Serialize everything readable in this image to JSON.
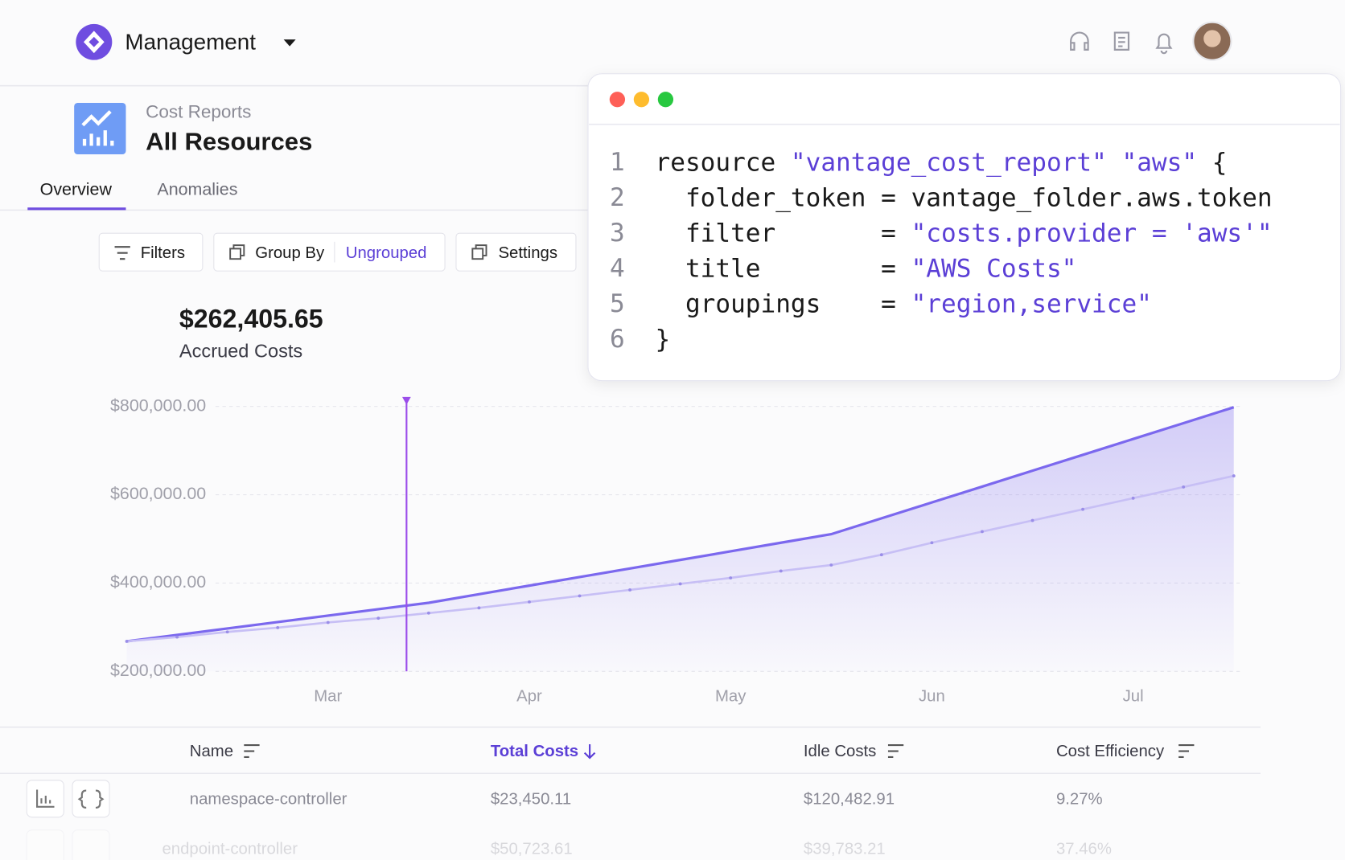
{
  "header": {
    "title": "Management"
  },
  "report": {
    "breadcrumb": "Cost Reports",
    "title": "All Resources"
  },
  "tabs": [
    "Overview",
    "Anomalies"
  ],
  "toolbar": {
    "filters": "Filters",
    "group_by": "Group By",
    "group_value": "Ungrouped",
    "settings": "Settings"
  },
  "summary": {
    "value": "$262,405.65",
    "label": "Accrued Costs"
  },
  "code": {
    "line_numbers": [
      1,
      2,
      3,
      4,
      5,
      6
    ],
    "lines": [
      [
        {
          "text": "resource ",
          "color": "#1a1a1a"
        },
        {
          "text": "\"vantage_cost_report\" \"aws\"",
          "color": "#5b3fd6"
        },
        {
          "text": " {",
          "color": "#1a1a1a"
        }
      ],
      [
        {
          "text": "  folder_token = vantage_folder.aws.token",
          "color": "#1a1a1a"
        }
      ],
      [
        {
          "text": "  filter       = ",
          "color": "#1a1a1a"
        },
        {
          "text": "\"costs.provider = 'aws'\"",
          "color": "#5b3fd6"
        }
      ],
      [
        {
          "text": "  title        = ",
          "color": "#1a1a1a"
        },
        {
          "text": "\"AWS Costs\"",
          "color": "#5b3fd6"
        }
      ],
      [
        {
          "text": "  groupings    = ",
          "color": "#1a1a1a"
        },
        {
          "text": "\"region,service\"",
          "color": "#5b3fd6"
        }
      ],
      [
        {
          "text": "}",
          "color": "#1a1a1a"
        }
      ]
    ]
  },
  "chart_data": {
    "type": "line",
    "x": [
      2.0,
      2.25,
      2.5,
      2.75,
      3.0,
      3.25,
      3.5,
      3.75,
      4.0,
      4.25,
      4.5,
      4.75,
      5.0,
      5.25,
      5.5,
      5.75,
      6.0,
      6.25,
      6.5,
      6.75,
      7.0,
      7.25,
      7.5
    ],
    "series": [
      {
        "color": "#7b68ee",
        "area": true,
        "values": [
          268000,
          282500,
          297100,
          311700,
          326200,
          340800,
          355300,
          374800,
          394200,
          413600,
          433000,
          452400,
          471800,
          491300,
          510700,
          546600,
          582500,
          618400,
          654400,
          690300,
          726200,
          762100,
          798100
        ]
      },
      {
        "color": "#c7bff5",
        "markers": true,
        "values": [
          268000,
          277700,
          289300,
          299000,
          310700,
          320400,
          332000,
          343700,
          357300,
          370900,
          384500,
          398100,
          411700,
          427200,
          440800,
          464100,
          491300,
          516500,
          541700,
          567000,
          592200,
          617500,
          642700
        ]
      }
    ],
    "xlim": [
      2.0,
      7.5
    ],
    "xticks": [
      {
        "value": 3,
        "label": "Mar"
      },
      {
        "value": 4,
        "label": "Apr"
      },
      {
        "value": 5,
        "label": "May"
      },
      {
        "value": 6,
        "label": "Jun"
      },
      {
        "value": 7,
        "label": "Jul"
      }
    ],
    "ylim": [
      200000,
      800000
    ],
    "yticks": [
      {
        "value": 200000,
        "label": "$200,000.00"
      },
      {
        "value": 400000,
        "label": "$400,000.00"
      },
      {
        "value": 600000,
        "label": "$600,000.00"
      },
      {
        "value": 800000,
        "label": "$800,000.00"
      }
    ],
    "grid": true,
    "marker_x": 3.39,
    "marker_color": "#9b4dea"
  },
  "table": {
    "columns": [
      "Name",
      "Total Costs",
      "Idle Costs",
      "Cost Efficiency"
    ],
    "rows": [
      [
        "namespace-controller",
        "$23,450.11",
        "$120,482.91",
        "9.27%"
      ],
      [
        "endpoint-controller",
        "$50,723.61",
        "$39,783.21",
        "37.46%"
      ]
    ]
  }
}
